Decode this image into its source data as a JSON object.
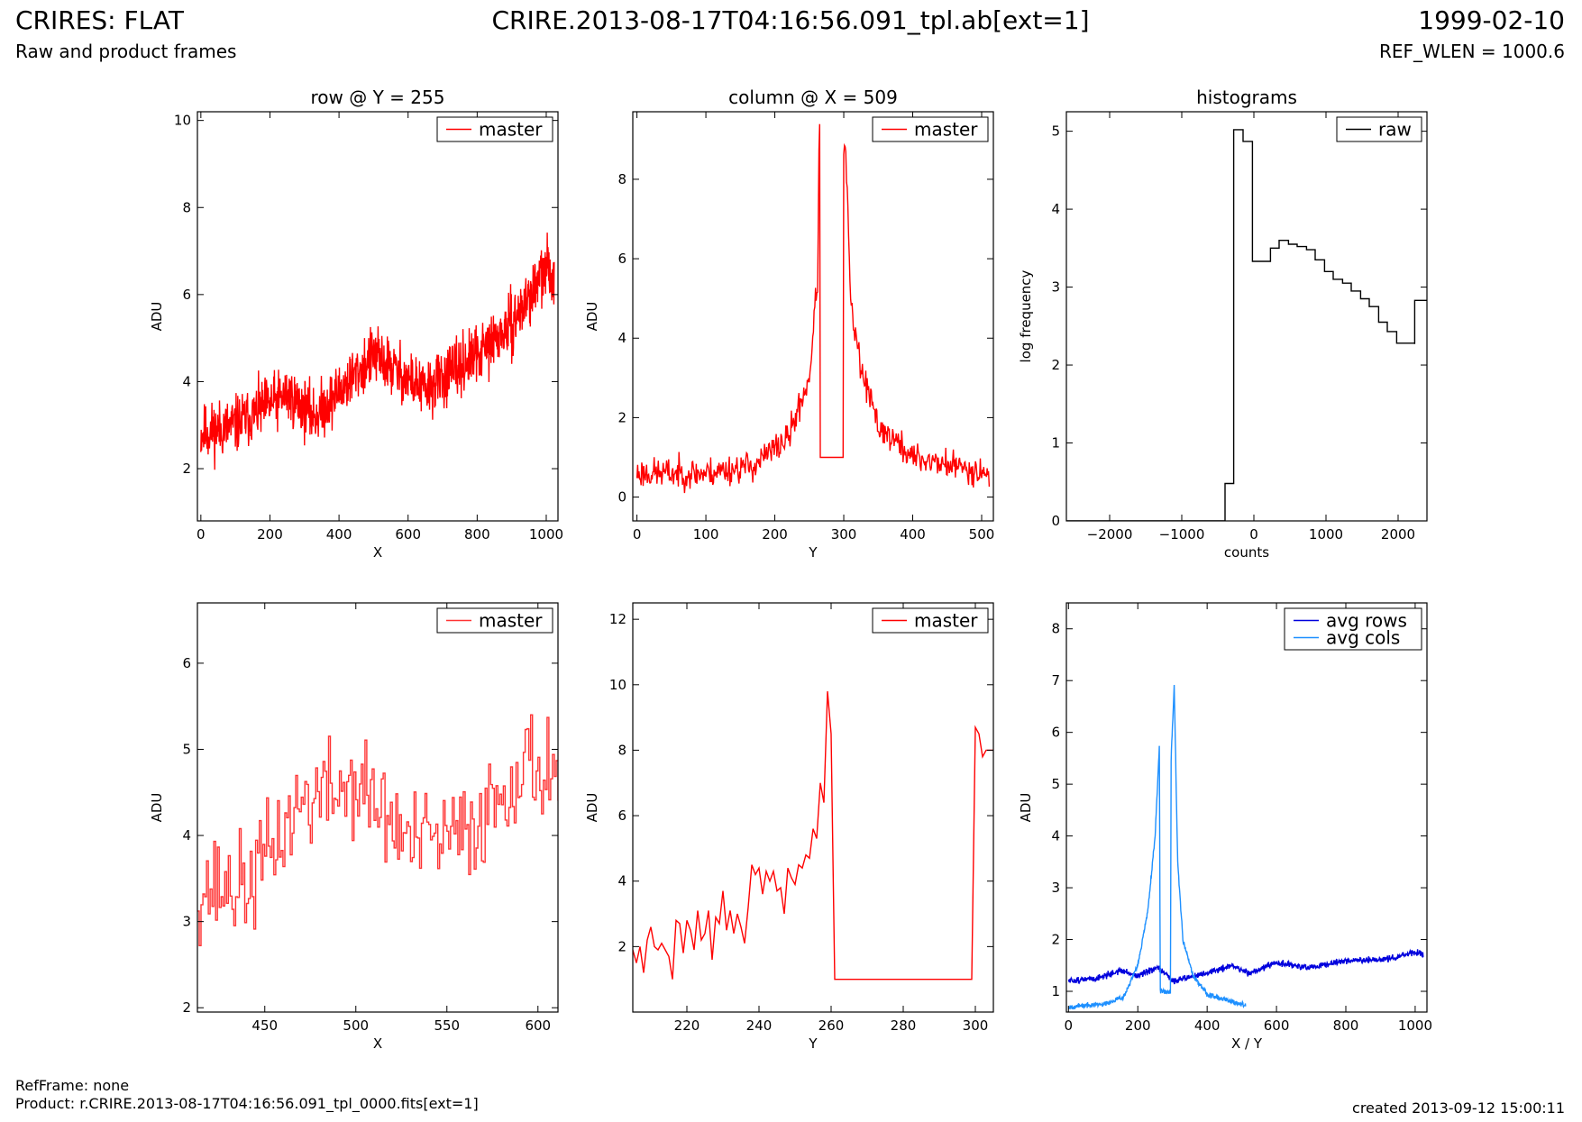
{
  "header": {
    "title_left": "CRIRES: FLAT",
    "subtitle_left": "Raw and product frames",
    "title_center": "CRIRE.2013-08-17T04:16:56.091_tpl.ab[ext=1]",
    "title_right": "1999-02-10",
    "subtitle_right": "REF_WLEN = 1000.6"
  },
  "footer": {
    "refframe": "RefFrame: none",
    "product": "Product: r.CRIRE.2013-08-17T04:16:56.091_tpl_0000.fits[ext=1]",
    "created": "created 2013-09-12 15:00:11"
  },
  "colors": {
    "red": "#ff0000",
    "red_light": "#ff3333",
    "black": "#000000",
    "blue": "#0000dd",
    "lightblue": "#1e90ff"
  },
  "chart_data": [
    {
      "id": "row",
      "type": "line",
      "title": "row @ Y = 255",
      "xlabel": "X",
      "ylabel": "ADU",
      "xlim": [
        -10,
        1034
      ],
      "ylim": [
        0.8,
        10.2
      ],
      "xticks": [
        0,
        200,
        400,
        600,
        800,
        1000
      ],
      "yticks": [
        2,
        4,
        6,
        8,
        10
      ],
      "legend": {
        "placement": "top-right"
      },
      "series": [
        {
          "name": "master",
          "color": "#ff0000",
          "mode": "noisy",
          "x_range": [
            0,
            1023
          ],
          "n": 1024,
          "seed": 11,
          "noise": 0.55,
          "trend": [
            [
              0,
              2.8
            ],
            [
              100,
              3.0
            ],
            [
              250,
              3.7
            ],
            [
              330,
              3.2
            ],
            [
              500,
              4.6
            ],
            [
              650,
              3.8
            ],
            [
              800,
              4.6
            ],
            [
              900,
              5.3
            ],
            [
              1000,
              6.6
            ],
            [
              1023,
              6.4
            ]
          ]
        }
      ]
    },
    {
      "id": "column",
      "type": "line",
      "title": "column @ X = 509",
      "xlabel": "Y",
      "ylabel": "ADU",
      "xlim": [
        -6,
        517
      ],
      "ylim": [
        -0.6,
        9.7
      ],
      "xticks": [
        0,
        100,
        200,
        300,
        400,
        500
      ],
      "yticks": [
        0,
        2,
        4,
        6,
        8
      ],
      "legend": {
        "placement": "top-right"
      },
      "series": [
        {
          "name": "master",
          "color": "#ff0000",
          "mode": "noisy",
          "x_range": [
            0,
            511
          ],
          "n": 512,
          "seed": 23,
          "noise": 0.32,
          "trend": [
            [
              0,
              0.6
            ],
            [
              100,
              0.6
            ],
            [
              170,
              0.8
            ],
            [
              220,
              1.5
            ],
            [
              250,
              3.0
            ],
            [
              262,
              5.5
            ],
            [
              265,
              9.7
            ],
            [
              266,
              1.0
            ],
            [
              299,
              1.0
            ],
            [
              300,
              8.5
            ],
            [
              303,
              8.8
            ],
            [
              310,
              4.8
            ],
            [
              325,
              3.2
            ],
            [
              350,
              1.8
            ],
            [
              400,
              1.0
            ],
            [
              511,
              0.6
            ]
          ],
          "flat": [
            [
              266,
              299,
              1.0
            ]
          ]
        }
      ]
    },
    {
      "id": "histogram",
      "type": "line",
      "title": "histograms",
      "xlabel": "counts",
      "ylabel": "log frequency",
      "xlim": [
        -2600,
        2400
      ],
      "ylim": [
        0,
        5.25
      ],
      "xticks": [
        -2000,
        -1000,
        0,
        1000,
        2000
      ],
      "yticks": [
        0,
        1,
        2,
        3,
        4,
        5
      ],
      "legend": {
        "placement": "top-right"
      },
      "series": [
        {
          "name": "raw",
          "color": "#000000",
          "mode": "step",
          "points": [
            [
              -2600,
              0
            ],
            [
              -400,
              0
            ],
            [
              -400,
              0.48
            ],
            [
              -280,
              0.48
            ],
            [
              -280,
              5.02
            ],
            [
              -150,
              5.02
            ],
            [
              -150,
              4.87
            ],
            [
              -20,
              4.87
            ],
            [
              -20,
              3.33
            ],
            [
              230,
              3.33
            ],
            [
              230,
              3.5
            ],
            [
              350,
              3.5
            ],
            [
              350,
              3.6
            ],
            [
              480,
              3.6
            ],
            [
              480,
              3.55
            ],
            [
              600,
              3.55
            ],
            [
              600,
              3.52
            ],
            [
              730,
              3.52
            ],
            [
              730,
              3.48
            ],
            [
              850,
              3.48
            ],
            [
              850,
              3.35
            ],
            [
              980,
              3.35
            ],
            [
              980,
              3.2
            ],
            [
              1100,
              3.2
            ],
            [
              1100,
              3.1
            ],
            [
              1230,
              3.1
            ],
            [
              1230,
              3.05
            ],
            [
              1350,
              3.05
            ],
            [
              1350,
              2.95
            ],
            [
              1480,
              2.95
            ],
            [
              1480,
              2.85
            ],
            [
              1600,
              2.85
            ],
            [
              1600,
              2.75
            ],
            [
              1730,
              2.75
            ],
            [
              1730,
              2.55
            ],
            [
              1850,
              2.55
            ],
            [
              1850,
              2.43
            ],
            [
              1980,
              2.43
            ],
            [
              1980,
              2.28
            ],
            [
              2230,
              2.28
            ],
            [
              2230,
              2.27
            ],
            [
              2230,
              2.83
            ],
            [
              2400,
              2.83
            ]
          ]
        }
      ]
    },
    {
      "id": "row-zoom",
      "type": "line",
      "xlabel": "X",
      "ylabel": "ADU",
      "xlim": [
        413,
        611
      ],
      "ylim": [
        1.95,
        6.7
      ],
      "xticks": [
        450,
        500,
        550,
        600
      ],
      "yticks": [
        2,
        3,
        4,
        5,
        6
      ],
      "legend": {
        "placement": "top-right"
      },
      "series": [
        {
          "name": "master",
          "color": "#ff3333",
          "mode": "noisystep",
          "x_range": [
            413,
            611
          ],
          "n": 199,
          "seed": 37,
          "noise": 0.5,
          "trend": [
            [
              413,
              3.4
            ],
            [
              440,
              3.4
            ],
            [
              470,
              4.4
            ],
            [
              500,
              4.6
            ],
            [
              530,
              3.9
            ],
            [
              560,
              4.0
            ],
            [
              590,
              4.8
            ],
            [
              611,
              4.8
            ]
          ]
        }
      ]
    },
    {
      "id": "column-zoom",
      "type": "line",
      "xlabel": "Y",
      "ylabel": "ADU",
      "xlim": [
        205,
        305
      ],
      "ylim": [
        0,
        12.5
      ],
      "xticks": [
        220,
        240,
        260,
        280,
        300
      ],
      "yticks": [
        2,
        4,
        6,
        8,
        10,
        12
      ],
      "legend": {
        "placement": "top-right"
      },
      "series": [
        {
          "name": "master",
          "color": "#ff0000",
          "mode": "step",
          "points": [
            [
              205,
              1.9
            ],
            [
              206,
              1.5
            ],
            [
              207,
              2.0
            ],
            [
              208,
              1.2
            ],
            [
              209,
              2.2
            ],
            [
              210,
              2.6
            ],
            [
              211,
              2.0
            ],
            [
              212,
              1.9
            ],
            [
              213,
              2.1
            ],
            [
              214,
              1.9
            ],
            [
              215,
              1.7
            ],
            [
              216,
              1.0
            ],
            [
              217,
              2.8
            ],
            [
              218,
              2.7
            ],
            [
              219,
              1.8
            ],
            [
              220,
              2.8
            ],
            [
              221,
              2.5
            ],
            [
              222,
              1.9
            ],
            [
              223,
              3.1
            ],
            [
              224,
              2.2
            ],
            [
              225,
              2.4
            ],
            [
              226,
              3.1
            ],
            [
              227,
              1.6
            ],
            [
              228,
              2.9
            ],
            [
              229,
              2.7
            ],
            [
              230,
              3.7
            ],
            [
              231,
              2.5
            ],
            [
              232,
              3.1
            ],
            [
              233,
              2.4
            ],
            [
              234,
              3.0
            ],
            [
              235,
              2.6
            ],
            [
              236,
              2.1
            ],
            [
              237,
              3.2
            ],
            [
              238,
              4.5
            ],
            [
              239,
              4.2
            ],
            [
              240,
              4.4
            ],
            [
              241,
              3.6
            ],
            [
              242,
              4.3
            ],
            [
              243,
              4.0
            ],
            [
              244,
              4.3
            ],
            [
              245,
              3.7
            ],
            [
              246,
              3.8
            ],
            [
              247,
              3.0
            ],
            [
              248,
              4.4
            ],
            [
              249,
              4.1
            ],
            [
              250,
              3.9
            ],
            [
              251,
              4.5
            ],
            [
              252,
              4.4
            ],
            [
              253,
              4.8
            ],
            [
              254,
              4.7
            ],
            [
              255,
              5.6
            ],
            [
              256,
              5.3
            ],
            [
              257,
              7.0
            ],
            [
              258,
              6.4
            ],
            [
              259,
              9.8
            ],
            [
              260,
              8.5
            ],
            [
              261,
              1.0
            ],
            [
              299,
              1.0
            ],
            [
              300,
              8.7
            ],
            [
              301,
              8.5
            ],
            [
              302,
              7.8
            ],
            [
              303,
              8.0
            ],
            [
              305,
              8.0
            ]
          ]
        }
      ]
    },
    {
      "id": "averages",
      "type": "line",
      "xlabel": "X / Y",
      "ylabel": "ADU",
      "xlim": [
        -6,
        1034
      ],
      "ylim": [
        0.6,
        8.5
      ],
      "xticks": [
        0,
        200,
        400,
        600,
        800,
        1000
      ],
      "yticks": [
        1,
        2,
        3,
        4,
        5,
        6,
        7,
        8
      ],
      "legend": {
        "placement": "top-right"
      },
      "series": [
        {
          "name": "avg rows",
          "color": "#0000dd",
          "mode": "noisy",
          "x_range": [
            0,
            1023
          ],
          "n": 1024,
          "seed": 51,
          "noise": 0.05,
          "trend": [
            [
              0,
              1.2
            ],
            [
              80,
              1.25
            ],
            [
              150,
              1.4
            ],
            [
              200,
              1.3
            ],
            [
              260,
              1.45
            ],
            [
              300,
              1.2
            ],
            [
              400,
              1.35
            ],
            [
              470,
              1.5
            ],
            [
              520,
              1.35
            ],
            [
              600,
              1.55
            ],
            [
              700,
              1.45
            ],
            [
              800,
              1.6
            ],
            [
              900,
              1.6
            ],
            [
              1000,
              1.75
            ],
            [
              1023,
              1.7
            ]
          ]
        },
        {
          "name": "avg cols",
          "color": "#1e90ff",
          "mode": "noisy",
          "x_range": [
            0,
            511
          ],
          "n": 512,
          "seed": 67,
          "noise": 0.04,
          "trend": [
            [
              0,
              0.7
            ],
            [
              100,
              0.75
            ],
            [
              160,
              0.9
            ],
            [
              200,
              1.5
            ],
            [
              230,
              2.6
            ],
            [
              250,
              4.0
            ],
            [
              262,
              5.7
            ],
            [
              265,
              1.0
            ],
            [
              294,
              1.0
            ],
            [
              296,
              5.5
            ],
            [
              305,
              6.9
            ],
            [
              315,
              3.5
            ],
            [
              330,
              2.0
            ],
            [
              360,
              1.3
            ],
            [
              400,
              0.95
            ],
            [
              511,
              0.72
            ]
          ]
        }
      ]
    }
  ]
}
